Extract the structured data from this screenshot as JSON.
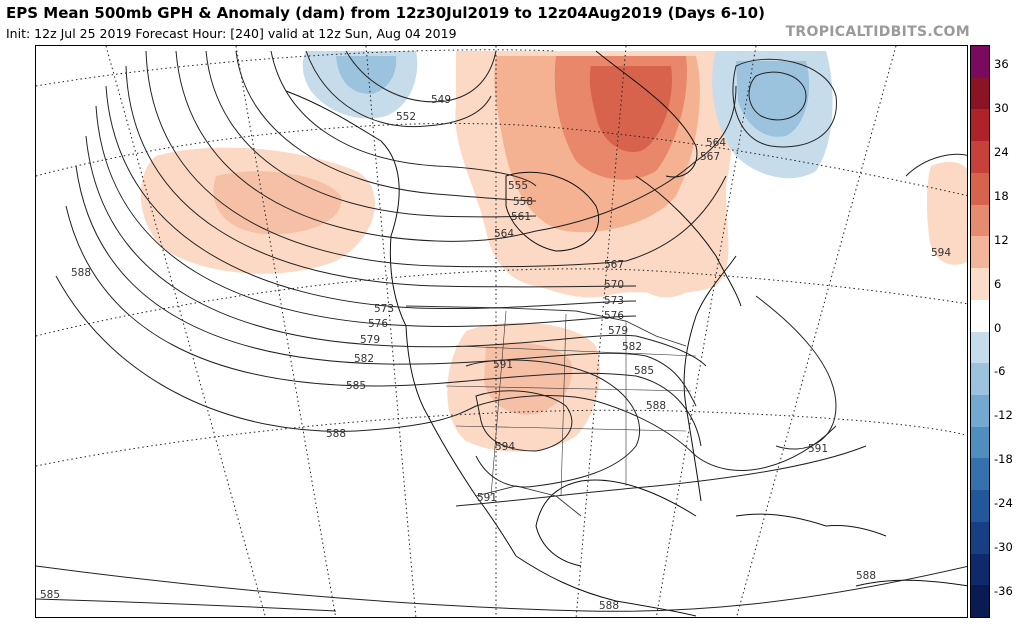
{
  "header": {
    "title": "EPS Mean 500mb GPH & Anomaly (dam) from 12z30Jul2019 to 12z04Aug2019 (Days 6-10)",
    "subtitle": "Init: 12z Jul 25 2019   Forecast Hour: [240]   valid at 12z Sun, Aug 04 2019",
    "brand": "TROPICALTIDBITS.COM"
  },
  "colorbar": {
    "ticks": [
      "36",
      "30",
      "24",
      "18",
      "12",
      "6",
      "0",
      "-6",
      "-12",
      "-18",
      "-24",
      "-30",
      "-36"
    ],
    "colors": [
      "#7a0a5e",
      "#8c1226",
      "#b0222a",
      "#c8403a",
      "#d8634d",
      "#e58c70",
      "#f2b59a",
      "#fbdcc8",
      "#ffffff",
      "#c6dcea",
      "#9cc3de",
      "#73a9d0",
      "#4f8fc0",
      "#3572ad",
      "#22579a",
      "#173f84",
      "#0f2a6a",
      "#0a1a52"
    ]
  },
  "map": {
    "contour_labels": [
      {
        "text": "549"
      },
      {
        "text": "552"
      },
      {
        "text": "555"
      },
      {
        "text": "558"
      },
      {
        "text": "561"
      },
      {
        "text": "564"
      },
      {
        "text": "567"
      },
      {
        "text": "570"
      },
      {
        "text": "573"
      },
      {
        "text": "576"
      },
      {
        "text": "579"
      },
      {
        "text": "582"
      },
      {
        "text": "573"
      },
      {
        "text": "576"
      },
      {
        "text": "579"
      },
      {
        "text": "582"
      },
      {
        "text": "585"
      },
      {
        "text": "588"
      },
      {
        "text": "591"
      },
      {
        "text": "594"
      },
      {
        "text": "591"
      },
      {
        "text": "588"
      },
      {
        "text": "585"
      },
      {
        "text": "588"
      },
      {
        "text": "564"
      },
      {
        "text": "567"
      },
      {
        "text": "591"
      },
      {
        "text": "594"
      },
      {
        "text": "588"
      },
      {
        "text": "588"
      },
      {
        "text": "585"
      }
    ]
  }
}
